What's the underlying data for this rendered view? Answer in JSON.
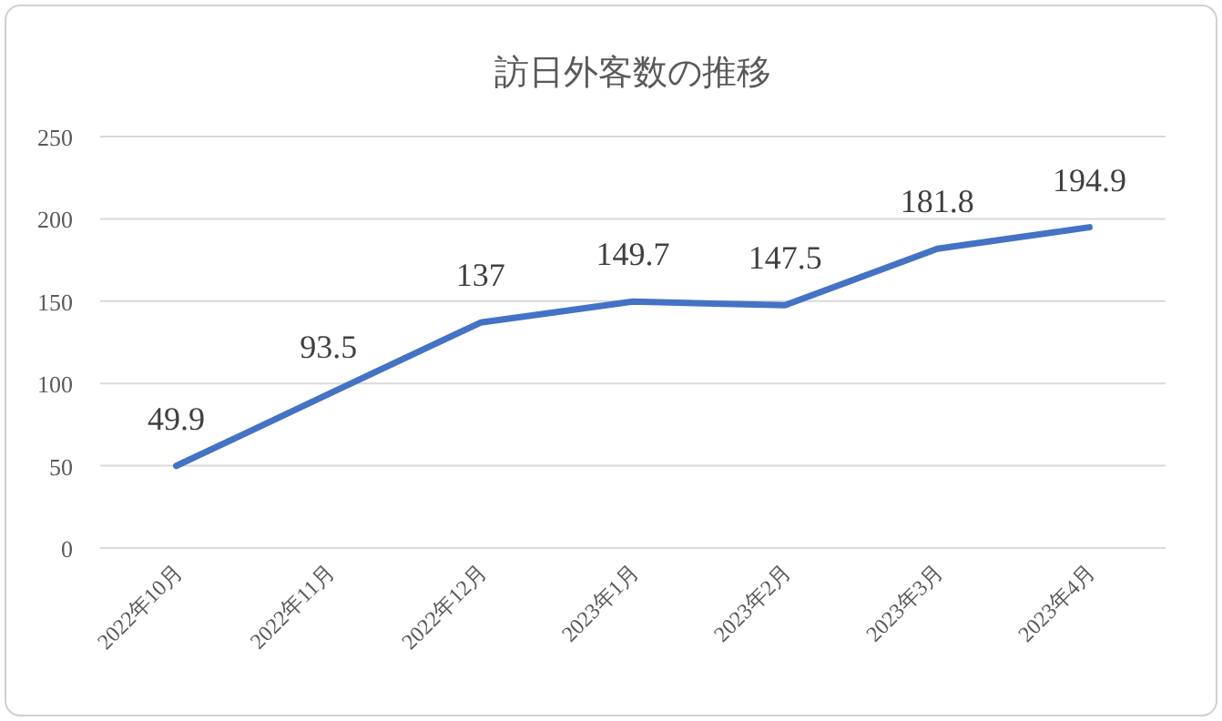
{
  "chart_data": {
    "type": "line",
    "title": "訪日外客数の推移",
    "categories": [
      "2022年10月",
      "2022年11月",
      "2022年12月",
      "2023年1月",
      "2023年2月",
      "2023年3月",
      "2023年4月"
    ],
    "series": [
      {
        "color": "#4472c4",
        "values": [
          49.9,
          93.5,
          137,
          149.7,
          147.5,
          181.8,
          194.9
        ]
      }
    ],
    "ylim": [
      0,
      250
    ],
    "yticks": [
      0,
      50,
      100,
      150,
      200,
      250
    ],
    "grid": "y",
    "data_labels": true,
    "marker": "none",
    "line_style": "solid"
  }
}
